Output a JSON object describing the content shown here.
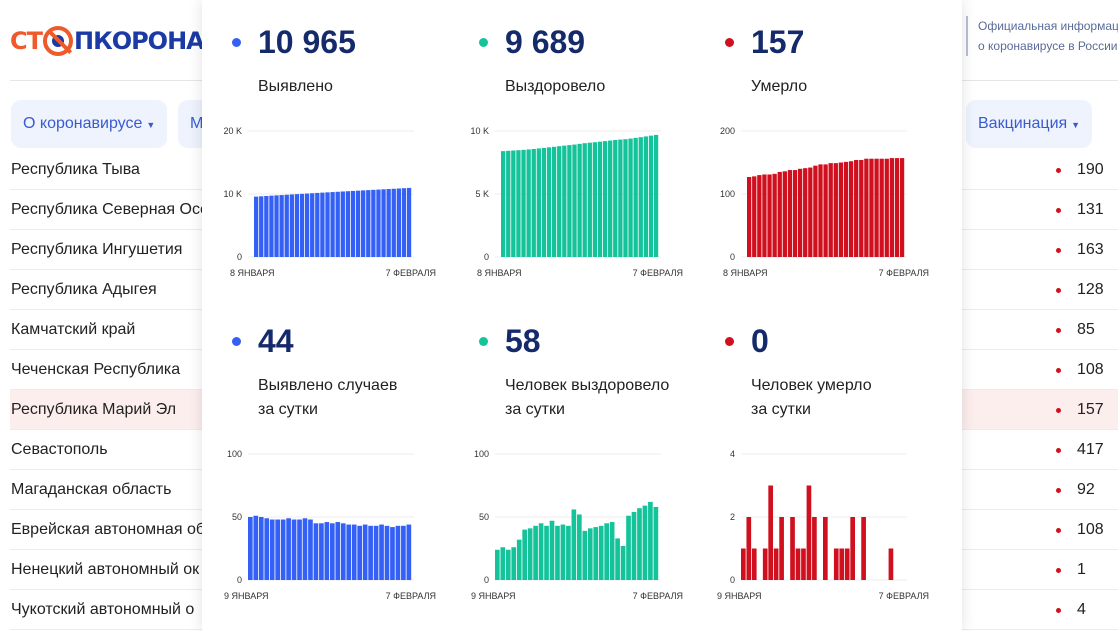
{
  "header": {
    "logo_text": "СТОПКОРОНАВИРУС",
    "logo_part1": "СТ",
    "logo_part2": "ПКОРОНАВИ",
    "info_line1": "Официальная информац",
    "info_line2": "о коронавирусе в России"
  },
  "nav": {
    "items": [
      {
        "label": "О коронавирусе"
      },
      {
        "label": "М"
      },
      {
        "label": "Вакцинация"
      }
    ]
  },
  "table": {
    "rows": [
      {
        "name": "Республика Тыва",
        "value": "190"
      },
      {
        "name": "Республика Северная Осе",
        "value": "131"
      },
      {
        "name": "Республика Ингушетия",
        "value": "163"
      },
      {
        "name": "Республика Адыгея",
        "value": "128"
      },
      {
        "name": "Камчатский край",
        "value": "85"
      },
      {
        "name": "Чеченская Республика",
        "value": "108"
      },
      {
        "name": "Республика Марий Эл",
        "value": "157",
        "highlighted": true
      },
      {
        "name": "Севастополь",
        "value": "417"
      },
      {
        "name": "Магаданская область",
        "value": "92"
      },
      {
        "name": "Еврейская автономная об",
        "value": "108"
      },
      {
        "name": "Ненецкий автономный ок",
        "value": "1"
      },
      {
        "name": "Чукотский автономный о",
        "value": "4"
      }
    ]
  },
  "colors": {
    "detected": "#3460f5",
    "recovered": "#14c39a",
    "deaths": "#d0101e",
    "number": "#152a6b"
  },
  "stats": [
    {
      "value": "10 965",
      "label1": "Выявлено",
      "label2": ""
    },
    {
      "value": "9 689",
      "label1": "Выздоровело",
      "label2": ""
    },
    {
      "value": "157",
      "label1": "Умерло",
      "label2": ""
    },
    {
      "value": "44",
      "label1": "Выявлено случаев",
      "label2": "за сутки"
    },
    {
      "value": "58",
      "label1": "Человек выздоровело",
      "label2": "за сутки"
    },
    {
      "value": "0",
      "label1": "Человек умерло",
      "label2": "за сутки"
    }
  ],
  "chart_data": [
    {
      "type": "bar",
      "series_color": "detected",
      "yticks": [
        "0",
        "10 K",
        "20 K"
      ],
      "ylim": [
        0,
        20000
      ],
      "x_start": "8 ЯНВАРЯ",
      "x_end": "7 ФЕВРАЛЯ",
      "values": [
        9585,
        9635,
        9686,
        9736,
        9785,
        9833,
        9881,
        9929,
        9978,
        10026,
        10074,
        10123,
        10171,
        10216,
        10261,
        10307,
        10352,
        10398,
        10443,
        10487,
        10531,
        10574,
        10618,
        10661,
        10704,
        10748,
        10791,
        10833,
        10876,
        10919,
        10965
      ]
    },
    {
      "type": "bar",
      "series_color": "recovered",
      "yticks": [
        "0",
        "5 K",
        "10 K"
      ],
      "ylim": [
        0,
        10000
      ],
      "x_start": "8 ЯНВАРЯ",
      "x_end": "7 ФЕВРАЛЯ",
      "values": [
        8403,
        8427,
        8453,
        8477,
        8503,
        8535,
        8575,
        8616,
        8659,
        8704,
        8747,
        8794,
        8837,
        8881,
        8924,
        8980,
        9032,
        9071,
        9112,
        9154,
        9197,
        9242,
        9288,
        9321,
        9348,
        9399,
        9453,
        9510,
        9569,
        9631,
        9689
      ]
    },
    {
      "type": "bar",
      "series_color": "deaths",
      "yticks": [
        "0",
        "100",
        "200"
      ],
      "ylim": [
        0,
        200
      ],
      "x_start": "8 ЯНВАРЯ",
      "x_end": "7 ФЕВРАЛЯ",
      "values": [
        127,
        128,
        130,
        131,
        131,
        132,
        135,
        136,
        138,
        138,
        140,
        141,
        142,
        145,
        147,
        147,
        149,
        149,
        150,
        151,
        152,
        154,
        154,
        156,
        156,
        156,
        156,
        156,
        157,
        157,
        157
      ]
    },
    {
      "type": "bar",
      "series_color": "detected",
      "yticks": [
        "0",
        "50",
        "100"
      ],
      "ylim": [
        0,
        100
      ],
      "x_start": "9 ЯНВАРЯ",
      "x_end": "7 ФЕВРАЛЯ",
      "values": [
        50,
        51,
        50,
        49,
        48,
        48,
        48,
        49,
        48,
        48,
        49,
        48,
        45,
        45,
        46,
        45,
        46,
        45,
        44,
        44,
        43,
        44,
        43,
        43,
        44,
        43,
        42,
        43,
        43,
        44
      ]
    },
    {
      "type": "bar",
      "series_color": "recovered",
      "yticks": [
        "0",
        "50",
        "100"
      ],
      "ylim": [
        0,
        100
      ],
      "x_start": "9 ЯНВАРЯ",
      "x_end": "7 ФЕВРАЛЯ",
      "values": [
        24,
        26,
        24,
        26,
        32,
        40,
        41,
        43,
        45,
        43,
        47,
        43,
        44,
        43,
        56,
        52,
        39,
        41,
        42,
        43,
        45,
        46,
        33,
        27,
        51,
        54,
        57,
        59,
        62,
        58
      ]
    },
    {
      "type": "bar",
      "series_color": "deaths",
      "yticks": [
        "0",
        "2",
        "4"
      ],
      "ylim": [
        0,
        4
      ],
      "x_start": "9 ЯНВАРЯ",
      "x_end": "7 ФЕВРАЛЯ",
      "values": [
        1,
        2,
        1,
        0,
        1,
        3,
        1,
        2,
        0,
        2,
        1,
        1,
        3,
        2,
        0,
        2,
        0,
        1,
        1,
        1,
        2,
        0,
        2,
        0,
        0,
        0,
        0,
        1,
        0,
        0
      ]
    }
  ]
}
